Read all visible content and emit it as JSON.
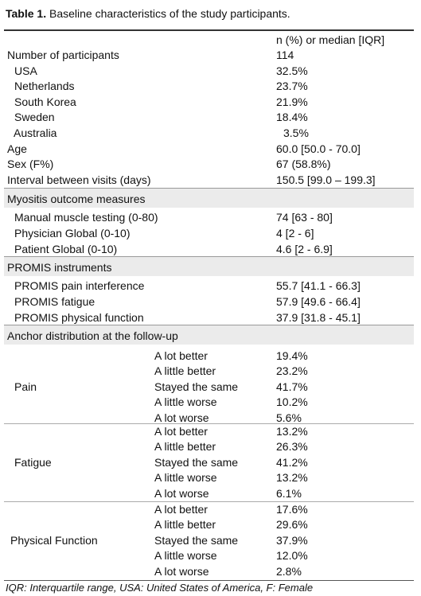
{
  "title": {
    "label": "Table 1.",
    "text": "Baseline characteristics of the study participants."
  },
  "header": "n (%) or median [IQR]",
  "sections": [
    {
      "rows": [
        [
          "Number of participants",
          "114"
        ],
        [
          "USA",
          "32.5%"
        ],
        [
          "Netherlands",
          "23.7%"
        ],
        [
          "South Korea",
          "21.9%"
        ],
        [
          "Sweden",
          "18.4%"
        ],
        [
          "Australia",
          "3.5%"
        ],
        [
          "Age",
          "60.0 [50.0 - 70.0]"
        ],
        [
          "Sex (F%)",
          "67 (58.8%)"
        ],
        [
          "Interval between visits (days)",
          "150.5 [99.0 – 199.3]"
        ]
      ]
    },
    {
      "heading": "Myositis outcome measures",
      "rows": [
        [
          "Manual muscle testing (0-80)",
          "74 [63 - 80]"
        ],
        [
          "Physician Global (0-10)",
          "4 [2 - 6]"
        ],
        [
          "Patient Global (0-10)",
          "4.6 [2 - 6.9]"
        ]
      ]
    },
    {
      "heading": "PROMIS instruments",
      "rows": [
        [
          "PROMIS pain interference",
          "55.7 [41.1 - 66.3]"
        ],
        [
          "PROMIS fatigue",
          "57.9 [49.6 - 66.4]"
        ],
        [
          "PROMIS physical function",
          "37.9 [31.8 - 45.1]"
        ]
      ]
    },
    {
      "heading": "Anchor distribution at the follow-up",
      "groups": [
        {
          "name": "Pain",
          "rows": [
            [
              "A lot better",
              "19.4%"
            ],
            [
              "A little better",
              "23.2%"
            ],
            [
              "Stayed the same",
              "41.7%"
            ],
            [
              "A little worse",
              "10.2%"
            ],
            [
              "A lot worse",
              "5.6%"
            ]
          ]
        },
        {
          "name": "Fatigue",
          "rows": [
            [
              "A lot better",
              "13.2%"
            ],
            [
              "A little better",
              "26.3%"
            ],
            [
              "Stayed the same",
              "41.2%"
            ],
            [
              "A little worse",
              "13.2%"
            ],
            [
              "A lot worse",
              "6.1%"
            ]
          ]
        },
        {
          "name": "Physical Function",
          "rows": [
            [
              "A lot better",
              "17.6%"
            ],
            [
              "A little better",
              "29.6%"
            ],
            [
              "Stayed the same",
              "37.9%"
            ],
            [
              "A little worse",
              "12.0%"
            ],
            [
              "A lot worse",
              "2.8%"
            ]
          ]
        }
      ]
    }
  ],
  "footnote": "IQR: Interquartile range, USA: United States of America, F: Female"
}
